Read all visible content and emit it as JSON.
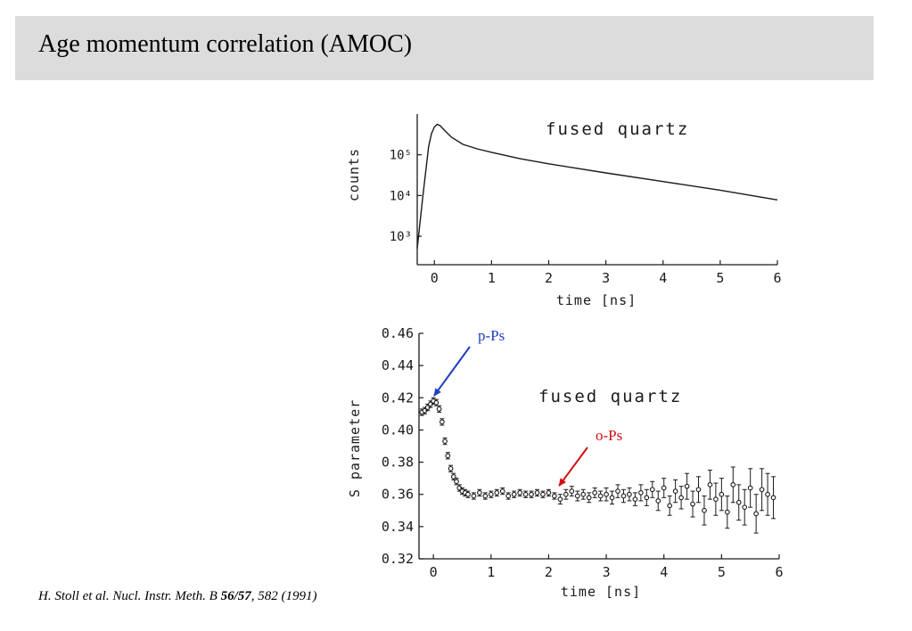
{
  "slide": {
    "title": "Age momentum correlation (AMOC)",
    "citation": {
      "authors_journal": "H. Stoll et al. Nucl. Instr. Meth. B ",
      "volume": "56/57",
      "pages_year": ", 582 (1991)"
    }
  },
  "colors": {
    "p_ps": "#1f3fc0",
    "o_ps": "#d01010",
    "ink": "#1a1a1a",
    "title_bg": "#dcdcdc"
  },
  "chart_data": [
    {
      "type": "line",
      "annotation": "fused quartz",
      "xlabel": "time [ns]",
      "ylabel": "counts",
      "yscale": "log",
      "xlim": [
        -0.3,
        6
      ],
      "ylim": [
        200,
        1000000
      ],
      "xticks": [
        0,
        1,
        2,
        3,
        4,
        5,
        6
      ],
      "yticks": [
        {
          "value": 1000,
          "label": "10³"
        },
        {
          "value": 10000,
          "label": "10⁴"
        },
        {
          "value": 100000,
          "label": "10⁵"
        }
      ],
      "series": [
        {
          "x": [
            -0.3,
            -0.2,
            -0.1,
            -0.05,
            0.0,
            0.05,
            0.1,
            0.2,
            0.3,
            0.5,
            0.75,
            1.0,
            1.5,
            2.0,
            3.0,
            4.0,
            5.0,
            6.0
          ],
          "y": [
            500,
            10000,
            160000,
            330000,
            480000,
            560000,
            520000,
            370000,
            270000,
            180000,
            140000,
            115000,
            80000,
            60000,
            36000,
            22000,
            13500,
            7800
          ]
        }
      ]
    },
    {
      "type": "scatter",
      "annotation": "fused quartz",
      "xlabel": "time [ns]",
      "ylabel": "S parameter",
      "xlim": [
        -0.25,
        6
      ],
      "ylim": [
        0.32,
        0.46
      ],
      "xticks": [
        0,
        1,
        2,
        3,
        4,
        5,
        6
      ],
      "yticks": [
        0.32,
        0.34,
        0.36,
        0.38,
        0.4,
        0.42,
        0.44,
        0.46
      ],
      "series": [
        {
          "x": [
            -0.2,
            -0.15,
            -0.1,
            -0.05,
            0.0,
            0.05,
            0.1,
            0.15,
            0.2,
            0.25,
            0.3,
            0.35,
            0.4,
            0.45,
            0.5,
            0.55,
            0.6,
            0.7,
            0.8,
            0.9,
            1.0,
            1.1,
            1.2,
            1.3,
            1.4,
            1.5,
            1.6,
            1.7,
            1.8,
            1.9,
            2.0,
            2.1,
            2.2,
            2.3,
            2.4,
            2.5,
            2.6,
            2.7,
            2.8,
            2.9,
            3.0,
            3.1,
            3.2,
            3.3,
            3.4,
            3.5,
            3.6,
            3.7,
            3.8,
            3.9,
            4.0,
            4.1,
            4.2,
            4.3,
            4.4,
            4.5,
            4.6,
            4.7,
            4.8,
            4.9,
            5.0,
            5.1,
            5.2,
            5.3,
            5.4,
            5.5,
            5.6,
            5.7,
            5.8,
            5.9
          ],
          "y": [
            0.411,
            0.412,
            0.414,
            0.416,
            0.418,
            0.417,
            0.413,
            0.405,
            0.393,
            0.384,
            0.376,
            0.371,
            0.368,
            0.364,
            0.362,
            0.361,
            0.36,
            0.359,
            0.361,
            0.359,
            0.36,
            0.361,
            0.362,
            0.359,
            0.36,
            0.361,
            0.36,
            0.36,
            0.361,
            0.36,
            0.361,
            0.359,
            0.357,
            0.36,
            0.362,
            0.359,
            0.36,
            0.358,
            0.361,
            0.359,
            0.36,
            0.358,
            0.362,
            0.359,
            0.36,
            0.357,
            0.361,
            0.358,
            0.363,
            0.356,
            0.364,
            0.353,
            0.362,
            0.358,
            0.365,
            0.354,
            0.363,
            0.35,
            0.366,
            0.357,
            0.36,
            0.349,
            0.366,
            0.355,
            0.352,
            0.364,
            0.348,
            0.363,
            0.36,
            0.358
          ],
          "err": [
            0.002,
            0.002,
            0.002,
            0.002,
            0.002,
            0.002,
            0.002,
            0.002,
            0.002,
            0.002,
            0.002,
            0.002,
            0.002,
            0.002,
            0.002,
            0.002,
            0.002,
            0.002,
            0.002,
            0.002,
            0.002,
            0.002,
            0.002,
            0.002,
            0.002,
            0.002,
            0.002,
            0.002,
            0.002,
            0.002,
            0.002,
            0.002,
            0.003,
            0.003,
            0.003,
            0.003,
            0.003,
            0.003,
            0.003,
            0.003,
            0.004,
            0.004,
            0.004,
            0.004,
            0.004,
            0.004,
            0.005,
            0.005,
            0.005,
            0.006,
            0.006,
            0.006,
            0.007,
            0.007,
            0.008,
            0.008,
            0.008,
            0.009,
            0.009,
            0.01,
            0.01,
            0.01,
            0.011,
            0.011,
            0.011,
            0.012,
            0.012,
            0.013,
            0.013,
            0.013
          ]
        }
      ],
      "annotations": [
        {
          "label": "p-Ps",
          "points_to": {
            "x": -0.05,
            "y": 0.419
          },
          "color_key": "p_ps"
        },
        {
          "label": "o-Ps",
          "points_to": {
            "x": 2.15,
            "y": 0.362
          },
          "color_key": "o_ps"
        }
      ]
    }
  ]
}
